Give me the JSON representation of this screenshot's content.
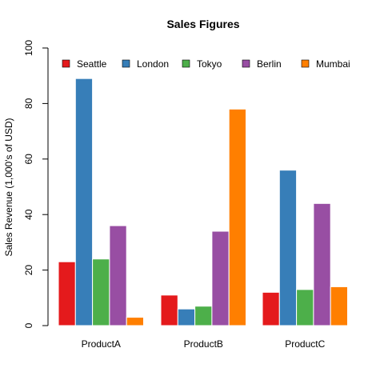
{
  "chart_data": {
    "type": "bar",
    "title": "Sales Figures",
    "xlabel": "",
    "ylabel": "Sales Revenue (1,000's of USD)",
    "categories": [
      "ProductA",
      "ProductB",
      "ProductC"
    ],
    "ylim": [
      0,
      100
    ],
    "yticks": [
      0,
      20,
      40,
      60,
      80,
      100
    ],
    "ytick_labels": [
      "0",
      "20",
      "40",
      "60",
      "80",
      "100"
    ],
    "grid": false,
    "legend_position": "top",
    "series": [
      {
        "name": "Seattle",
        "color": "#E41A1C",
        "values": [
          23,
          11,
          12
        ]
      },
      {
        "name": "London",
        "color": "#377EB8",
        "values": [
          89,
          6,
          56
        ]
      },
      {
        "name": "Tokyo",
        "color": "#4DAF4A",
        "values": [
          24,
          7,
          13
        ]
      },
      {
        "name": "Berlin",
        "color": "#984EA3",
        "values": [
          36,
          34,
          44
        ]
      },
      {
        "name": "Mumbai",
        "color": "#FF7F00",
        "values": [
          3,
          78,
          14
        ]
      }
    ]
  }
}
